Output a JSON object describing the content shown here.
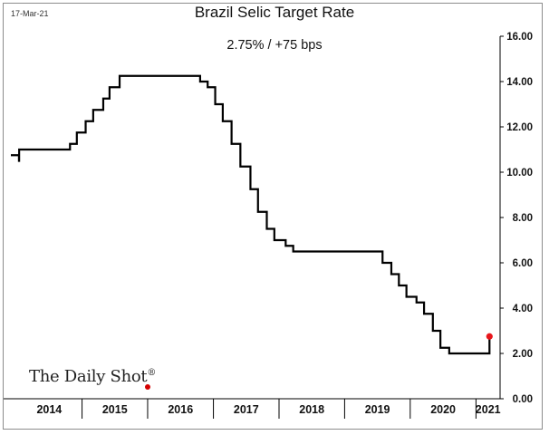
{
  "header": {
    "date": "17-Mar-21",
    "title": "Brazil Selic Target Rate",
    "subtitle": "2.75%  /  +75 bps"
  },
  "branding": {
    "name": "The Daily Shot",
    "reg_mark": "®"
  },
  "colors": {
    "line": "#000000",
    "highlight": "#e8161b",
    "grid": "#cccccc"
  },
  "chart_data": {
    "type": "line",
    "title": "Brazil Selic Target Rate",
    "subtitle": "2.75%  /  +75 bps",
    "ylim": [
      0,
      16
    ],
    "y_ticks": [
      "0.00",
      "2.00",
      "4.00",
      "6.00",
      "8.00",
      "10.00",
      "12.00",
      "14.00",
      "16.00"
    ],
    "x_ticks": [
      "2014",
      "2015",
      "2016",
      "2017",
      "2018",
      "2019",
      "2020",
      "2021"
    ],
    "grid": false,
    "series": [
      {
        "step": true,
        "points": [
          [
            "2013-12-01",
            10.75
          ],
          [
            "2014-01-15",
            10.5
          ],
          [
            "2014-01-16",
            11.0
          ],
          [
            "2014-10-26",
            11.25
          ],
          [
            "2014-12-03",
            11.75
          ],
          [
            "2015-01-21",
            12.25
          ],
          [
            "2015-03-04",
            12.75
          ],
          [
            "2015-04-29",
            13.25
          ],
          [
            "2015-06-03",
            13.75
          ],
          [
            "2015-07-29",
            14.25
          ],
          [
            "2016-10-19",
            14.0
          ],
          [
            "2016-11-30",
            13.75
          ],
          [
            "2017-01-11",
            13.0
          ],
          [
            "2017-02-22",
            12.25
          ],
          [
            "2017-04-12",
            11.25
          ],
          [
            "2017-05-31",
            10.25
          ],
          [
            "2017-07-26",
            9.25
          ],
          [
            "2017-09-06",
            8.25
          ],
          [
            "2017-10-25",
            7.5
          ],
          [
            "2017-12-06",
            7.0
          ],
          [
            "2018-02-07",
            6.75
          ],
          [
            "2018-03-21",
            6.5
          ],
          [
            "2019-07-31",
            6.0
          ],
          [
            "2019-09-18",
            5.5
          ],
          [
            "2019-10-30",
            5.0
          ],
          [
            "2019-12-11",
            4.5
          ],
          [
            "2020-02-05",
            4.25
          ],
          [
            "2020-03-18",
            3.75
          ],
          [
            "2020-05-06",
            3.0
          ],
          [
            "2020-06-17",
            2.25
          ],
          [
            "2020-08-05",
            2.0
          ],
          [
            "2021-03-16",
            2.0
          ],
          [
            "2021-03-17",
            2.75
          ]
        ]
      }
    ],
    "last_point": {
      "x": "2021-03-17",
      "y": 2.75
    }
  }
}
